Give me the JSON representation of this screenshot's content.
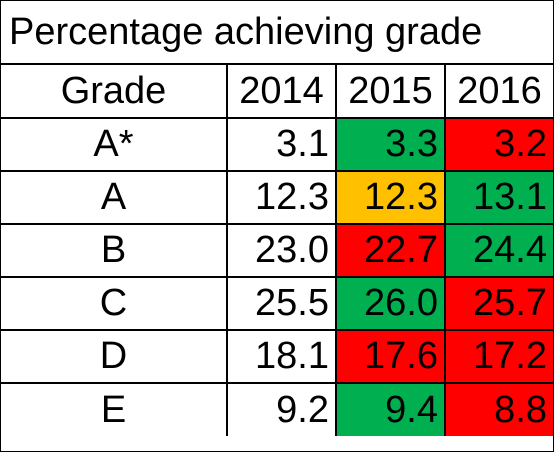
{
  "title": "Percentage achieving grade",
  "colors": {
    "increase": "#00b050",
    "decrease": "#ff0000",
    "unchanged": "#ffc000",
    "neutral": "#ffffff"
  },
  "header": {
    "grade": "Grade",
    "years": [
      "2014",
      "2015",
      "2016"
    ]
  },
  "rows": [
    {
      "grade": "A*",
      "values": [
        "3.1",
        "3.3",
        "3.2"
      ],
      "status": [
        "none",
        "up",
        "down"
      ]
    },
    {
      "grade": "A",
      "values": [
        "12.3",
        "12.3",
        "13.1"
      ],
      "status": [
        "none",
        "same",
        "up"
      ]
    },
    {
      "grade": "B",
      "values": [
        "23.0",
        "22.7",
        "24.4"
      ],
      "status": [
        "none",
        "down",
        "up"
      ]
    },
    {
      "grade": "C",
      "values": [
        "25.5",
        "26.0",
        "25.7"
      ],
      "status": [
        "none",
        "up",
        "down"
      ]
    },
    {
      "grade": "D",
      "values": [
        "18.1",
        "17.6",
        "17.2"
      ],
      "status": [
        "none",
        "down",
        "down"
      ]
    },
    {
      "grade": "E",
      "values": [
        "9.2",
        "9.4",
        "8.8"
      ],
      "status": [
        "none",
        "up",
        "down"
      ]
    }
  ]
}
